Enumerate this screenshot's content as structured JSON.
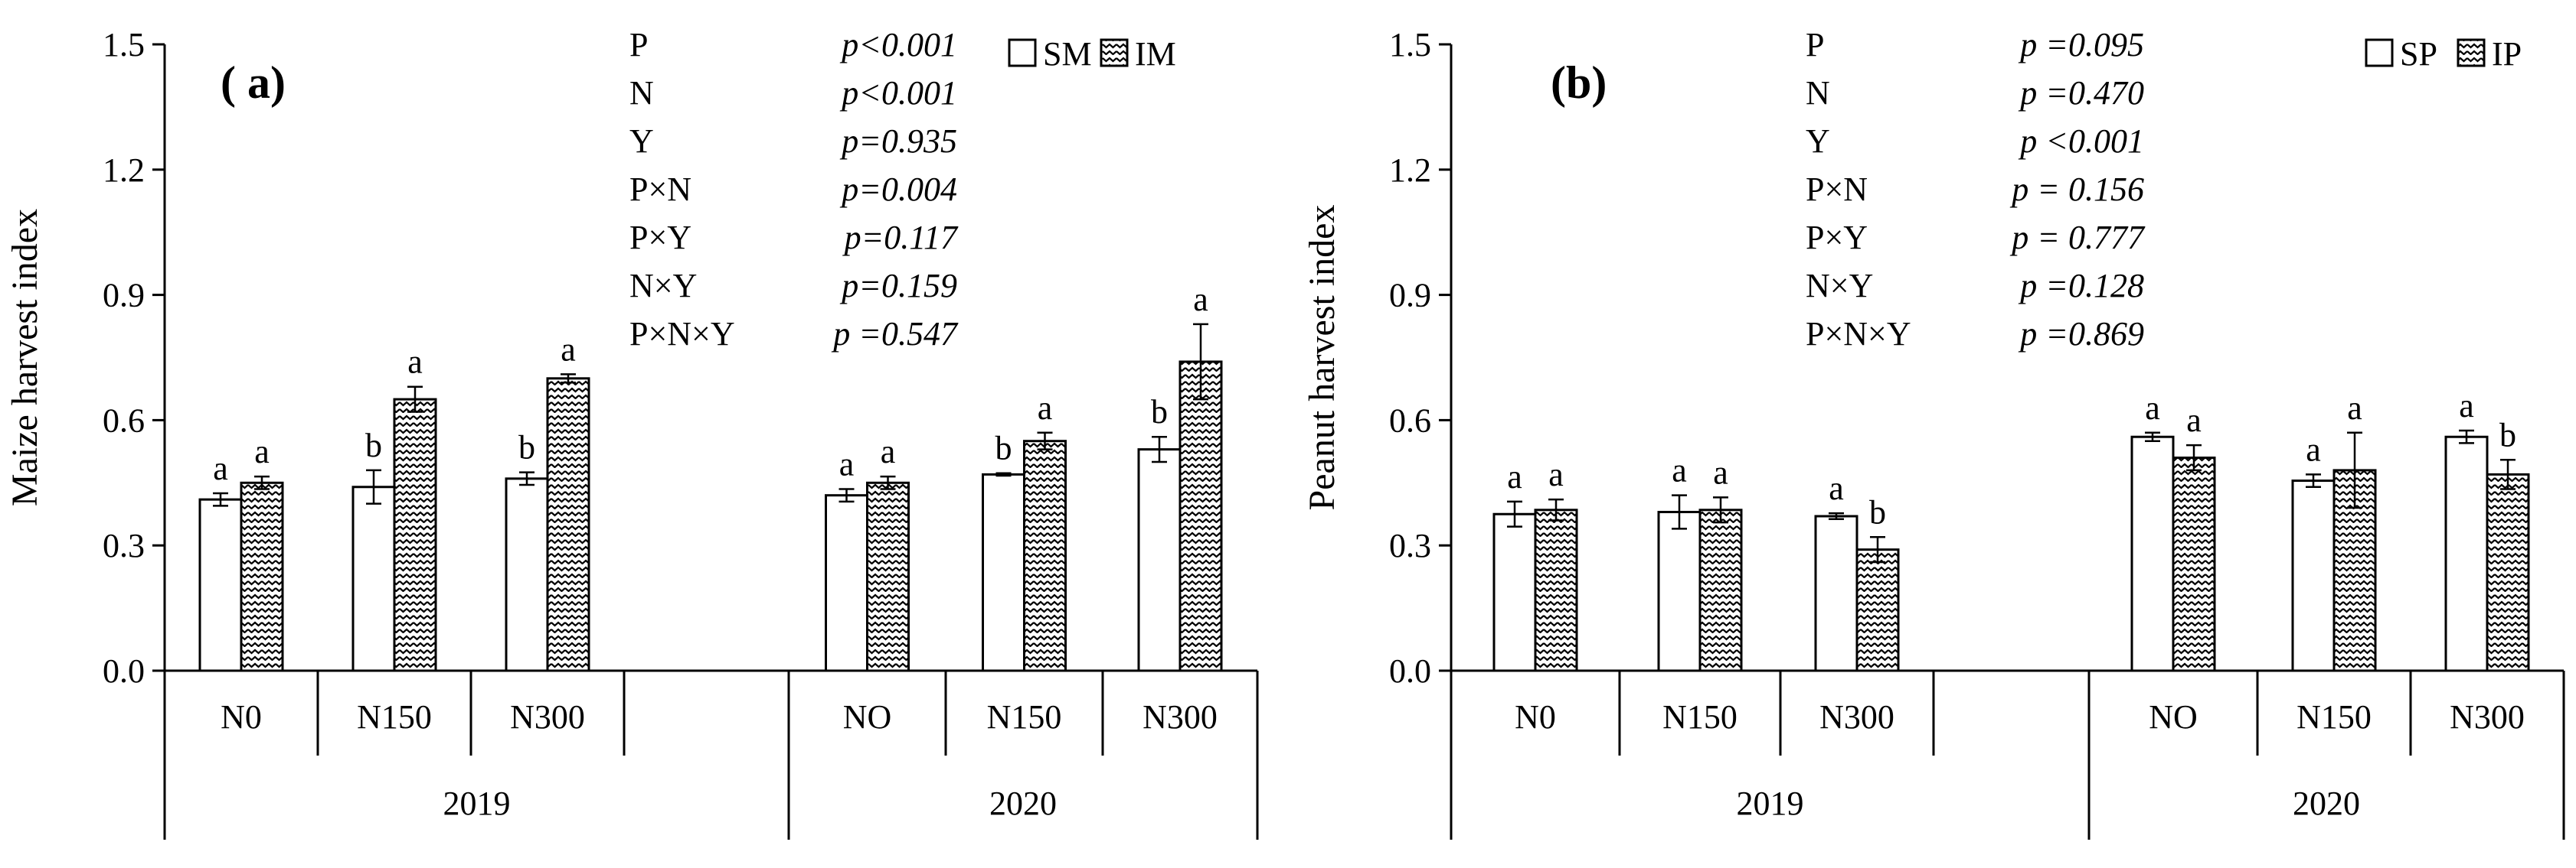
{
  "chart_data": [
    {
      "type": "bar",
      "panel_label": "( a)",
      "ylabel": "Maize harvest index",
      "ylim": [
        0,
        1.5
      ],
      "yticks": [
        "0.0",
        "0.3",
        "0.6",
        "0.9",
        "1.2",
        "1.5"
      ],
      "groups": [
        {
          "name": "2019",
          "categories": [
            "N0",
            "N150",
            "N300"
          ]
        },
        {
          "name": "2020",
          "categories": [
            "NO",
            "N150",
            "N300"
          ]
        }
      ],
      "series": [
        {
          "name": "SM",
          "pattern": "plain",
          "values": [
            0.41,
            0.44,
            0.46,
            0.42,
            0.47,
            0.53
          ],
          "errors": [
            0.015,
            0.04,
            0.015,
            0.015,
            0.003,
            0.03
          ],
          "letters": [
            "a",
            "b",
            "b",
            "a",
            "b",
            "b"
          ]
        },
        {
          "name": "IM",
          "pattern": "zigzag",
          "values": [
            0.45,
            0.65,
            0.7,
            0.45,
            0.55,
            0.74
          ],
          "errors": [
            0.015,
            0.03,
            0.01,
            0.015,
            0.02,
            0.09
          ],
          "letters": [
            "a",
            "a",
            "a",
            "a",
            "a",
            "a"
          ]
        }
      ],
      "stats": [
        {
          "term": "P",
          "p": "p<0.001"
        },
        {
          "term": "N",
          "p": "p<0.001"
        },
        {
          "term": "Y",
          "p": "p=0.935"
        },
        {
          "term": "P×N",
          "p": "p=0.004"
        },
        {
          "term": "P×Y",
          "p": "p=0.117"
        },
        {
          "term": "N×Y",
          "p": "p=0.159"
        },
        {
          "term": "P×N×Y",
          "p": "p =0.547"
        }
      ],
      "legend_position": "top-right"
    },
    {
      "type": "bar",
      "panel_label": "(b)",
      "ylabel": "Peanut harvest index",
      "ylim": [
        0,
        1.5
      ],
      "yticks": [
        "0.0",
        "0.3",
        "0.6",
        "0.9",
        "1.2",
        "1.5"
      ],
      "groups": [
        {
          "name": "2019",
          "categories": [
            "N0",
            "N150",
            "N300"
          ]
        },
        {
          "name": "2020",
          "categories": [
            "NO",
            "N150",
            "N300"
          ]
        }
      ],
      "series": [
        {
          "name": "SP",
          "pattern": "plain",
          "values": [
            0.375,
            0.38,
            0.37,
            0.56,
            0.455,
            0.56
          ],
          "errors": [
            0.03,
            0.04,
            0.007,
            0.01,
            0.015,
            0.015
          ],
          "letters": [
            "a",
            "a",
            "a",
            "a",
            "a",
            "a"
          ]
        },
        {
          "name": "IP",
          "pattern": "zigzag",
          "values": [
            0.385,
            0.385,
            0.29,
            0.51,
            0.48,
            0.47
          ],
          "errors": [
            0.025,
            0.03,
            0.03,
            0.03,
            0.09,
            0.035
          ],
          "letters": [
            "a",
            "a",
            "b",
            "a",
            "a",
            "b"
          ]
        }
      ],
      "stats": [
        {
          "term": "P",
          "p": "p =0.095"
        },
        {
          "term": "N",
          "p": "p =0.470"
        },
        {
          "term": "Y",
          "p": "p <0.001"
        },
        {
          "term": "P×N",
          "p": "p = 0.156"
        },
        {
          "term": "P×Y",
          "p": "p = 0.777"
        },
        {
          "term": "N×Y",
          "p": "p =0.128"
        },
        {
          "term": "P×N×Y",
          "p": "p =0.869"
        }
      ],
      "legend_position": "top-right"
    }
  ]
}
